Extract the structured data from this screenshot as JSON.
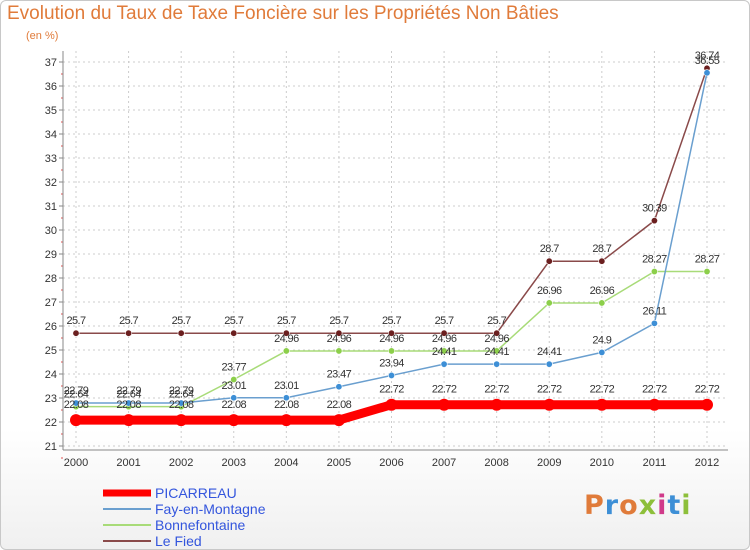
{
  "header": {
    "title": "Evolution du Taux de Taxe Foncière sur les Propriétés Non Bâties",
    "subtitle": "(en %)"
  },
  "logo": {
    "text": "Proxiti"
  },
  "chart_data": {
    "type": "line",
    "title": "Evolution du Taux de Taxe Foncière sur les Propriétés Non Bâties",
    "ylabel": "(en %)",
    "xlabel": "",
    "x": [
      "2000",
      "2001",
      "2002",
      "2003",
      "2004",
      "2005",
      "2006",
      "2007",
      "2008",
      "2009",
      "2010",
      "2011",
      "2012"
    ],
    "ylim": [
      21,
      37
    ],
    "yticks": [
      21,
      22,
      23,
      24,
      25,
      26,
      27,
      28,
      29,
      30,
      31,
      32,
      33,
      34,
      35,
      36,
      37
    ],
    "grid": true,
    "legend": "bottom-left",
    "series": [
      {
        "name": "PICARREAU",
        "color": "#ff0000",
        "values": [
          22.08,
          22.08,
          22.08,
          22.08,
          22.08,
          22.08,
          22.72,
          22.72,
          22.72,
          22.72,
          22.72,
          22.72,
          22.72
        ],
        "labels": [
          "22.08",
          "22.08",
          "22.08",
          "22.08",
          "22.08",
          "22.08",
          "22.72",
          "22.72",
          "22.72",
          "22.72",
          "22.72",
          "22.72",
          "22.72"
        ]
      },
      {
        "name": "Fay-en-Montagne",
        "color": "#6a9fcf",
        "marker": "#3d8fd6",
        "values": [
          22.79,
          22.79,
          22.79,
          23.01,
          23.01,
          23.47,
          23.94,
          24.41,
          24.41,
          24.41,
          24.9,
          26.11,
          36.55
        ],
        "labels": [
          "22.79",
          "22.79",
          "22.79",
          "23.01",
          "23.01",
          "23.47",
          "23.94",
          "24.41",
          "24.41",
          "24.41",
          "24.9",
          "26.11",
          "36.55"
        ]
      },
      {
        "name": "Bonnefontaine",
        "color": "#a8db78",
        "marker": "#8ccf4a",
        "values": [
          22.64,
          22.64,
          22.64,
          23.77,
          24.96,
          24.96,
          24.96,
          24.96,
          24.96,
          26.96,
          26.96,
          28.27,
          28.27
        ],
        "labels": [
          "22.64",
          "22.64",
          "22.64",
          "23.77",
          "24.96",
          "24.96",
          "24.96",
          "24.96",
          "24.96",
          "26.96",
          "26.96",
          "28.27",
          "28.27"
        ]
      },
      {
        "name": "Le Fied",
        "color": "#8a4a4a",
        "marker": "#6b1f1f",
        "values": [
          25.7,
          25.7,
          25.7,
          25.7,
          25.7,
          25.7,
          25.7,
          25.7,
          25.7,
          28.7,
          28.7,
          30.39,
          36.74
        ],
        "labels": [
          "25.7",
          "25.7",
          "25.7",
          "25.7",
          "25.7",
          "25.7",
          "25.7",
          "25.7",
          "25.7",
          "28.7",
          "28.7",
          "30.39",
          "36.74"
        ]
      }
    ],
    "colors": {
      "axis": "#888888",
      "grid": "#cccccc",
      "tick_label": "#333333",
      "data_label": "#333333",
      "legend_text": "#3355dd",
      "title": "#e07b3a"
    }
  }
}
